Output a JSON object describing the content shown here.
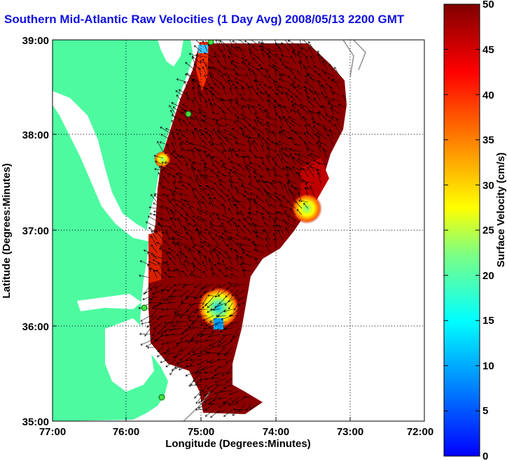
{
  "title": "Southern Mid-Atlantic Raw Velocities (1 Day Avg) 2008/05/13 2200 GMT",
  "map": {
    "xlabel": "Longitude (Degrees:Minutes)",
    "ylabel": "Latitude (Degrees:Minutes)",
    "x_ticks": [
      "77:00",
      "76:00",
      "75:00",
      "74:00",
      "73:00",
      "72:00"
    ],
    "y_ticks": [
      "39:00",
      "38:00",
      "37:00",
      "36:00",
      "35:00"
    ],
    "grid": "dotted",
    "colors": {
      "land": "#4dfaa0",
      "water": "#ffffff",
      "bathymetry": "#909090",
      "arrows": "#000000",
      "stations": "#44dd44"
    }
  },
  "colorbar": {
    "label": "Surface Velocity (cm/s)",
    "ticks": [
      "50",
      "45",
      "40",
      "35",
      "30",
      "25",
      "20",
      "15",
      "10",
      "5",
      "0"
    ],
    "range": [
      0,
      50
    ],
    "colormap": "jet"
  }
}
